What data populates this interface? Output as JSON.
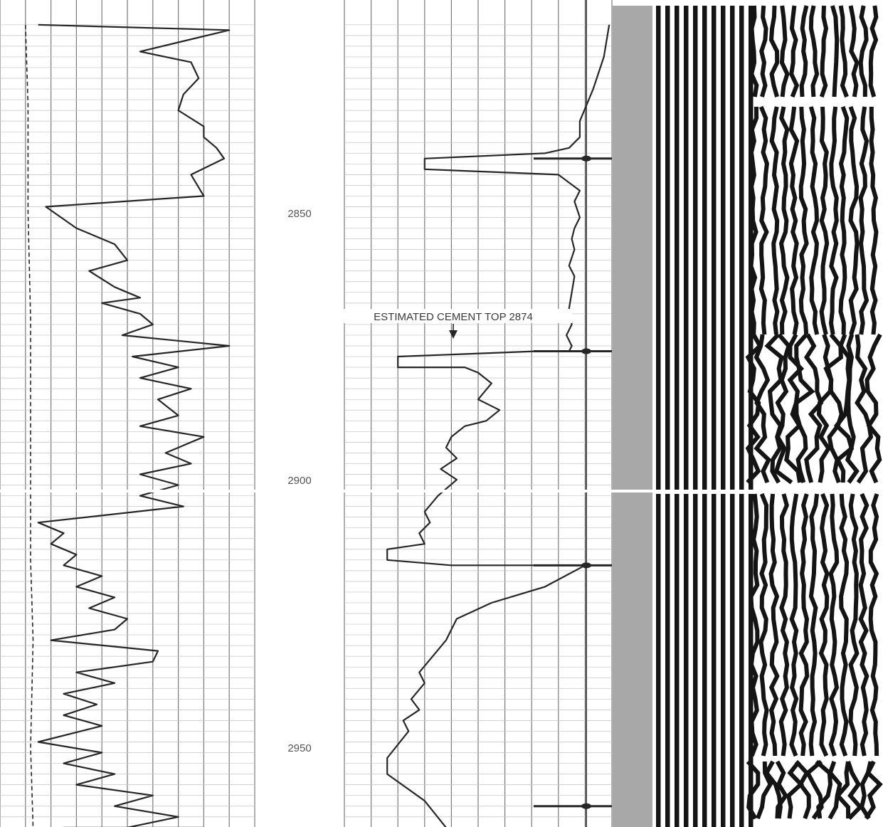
{
  "colors": {
    "paper": "#ffffff",
    "grid": "#7a7a7a",
    "grid_minor": "#c4c4c4",
    "ink": "#262626",
    "vdl_gray": "#a8a8a8",
    "vdl_dark": "#141414"
  },
  "chart_data": [
    {
      "type": "line",
      "track": "left",
      "depth_axis": "vertical",
      "depth_range": [
        2815,
        2965
      ],
      "grid": true,
      "series": [
        {
          "style": "solid",
          "x": [
            0.15,
            0.9,
            0.55,
            0.75,
            0.78,
            0.72,
            0.7,
            0.8,
            0.8,
            0.85,
            0.88,
            0.75,
            0.8,
            0.18,
            0.3,
            0.45,
            0.5,
            0.35,
            0.45,
            0.55,
            0.4,
            0.55,
            0.6,
            0.48,
            0.9,
            0.52,
            0.7,
            0.55,
            0.75,
            0.62,
            0.7,
            0.55,
            0.8,
            0.65,
            0.75,
            0.55,
            0.7,
            0.55,
            0.72,
            0.15,
            0.25,
            0.2,
            0.3,
            0.25,
            0.4,
            0.3,
            0.45,
            0.35,
            0.5,
            0.45,
            0.2,
            0.62,
            0.6,
            0.3,
            0.45,
            0.25,
            0.38,
            0.25,
            0.4,
            0.15,
            0.4,
            0.25,
            0.45,
            0.3,
            0.6,
            0.45,
            0.7,
            0.5,
            0.7,
            0.5,
            0.72,
            0.8,
            0.5,
            0.65,
            0.45,
            0.8,
            0.3,
            0.55,
            0.25
          ],
          "y": [
            2815,
            2816,
            2820,
            2822,
            2825,
            2828,
            2831,
            2834,
            2836,
            2838,
            2840,
            2843,
            2847,
            2849,
            2853,
            2856,
            2859,
            2861,
            2864,
            2866,
            2867,
            2869,
            2871,
            2873,
            2875,
            2877,
            2879,
            2881,
            2883,
            2885,
            2888,
            2890,
            2892,
            2895,
            2897,
            2899,
            2901,
            2903,
            2905,
            2908,
            2910,
            2912,
            2914,
            2916,
            2918,
            2920,
            2922,
            2924,
            2926,
            2928,
            2930,
            2932,
            2934,
            2936,
            2938,
            2940,
            2942,
            2944,
            2946,
            2949,
            2951,
            2953,
            2955,
            2957,
            2959,
            2961,
            2963,
            2965,
            2965,
            2965,
            2965,
            2965,
            2965,
            2965,
            2965,
            2965,
            2965,
            2965,
            2965
          ]
        },
        {
          "style": "dashed",
          "x": [
            0.1,
            0.11,
            0.11,
            0.12,
            0.12,
            0.12,
            0.12,
            0.13,
            0.12,
            0.13
          ],
          "y": [
            2815,
            2830,
            2850,
            2870,
            2885,
            2900,
            2915,
            2930,
            2950,
            2965
          ]
        }
      ]
    },
    {
      "type": "line",
      "track": "middle",
      "depth_axis": "vertical",
      "depth_range": [
        2815,
        2965
      ],
      "grid": true,
      "series": [
        {
          "style": "solid",
          "x": [
            0.99,
            0.97,
            0.93,
            0.88,
            0.88,
            0.84,
            0.75,
            0.3,
            0.3,
            0.8,
            0.88,
            0.86,
            0.88,
            0.86,
            0.85,
            0.86,
            0.84,
            0.86,
            0.85,
            0.84,
            0.85,
            0.83,
            0.85,
            0.84,
            0.72,
            0.2,
            0.2,
            0.45,
            0.5,
            0.55,
            0.5,
            0.58,
            0.53,
            0.45,
            0.4,
            0.38,
            0.42,
            0.36,
            0.42,
            0.35,
            0.3,
            0.32,
            0.28,
            0.3,
            0.16,
            0.16,
            0.4,
            0.7,
            0.9,
            0.75,
            0.55,
            0.42,
            0.38,
            0.33,
            0.28,
            0.3,
            0.25,
            0.28,
            0.22,
            0.24,
            0.16,
            0.16,
            0.3,
            0.38
          ],
          "y": [
            2815,
            2821,
            2827,
            2833,
            2836,
            2838,
            2839,
            2840,
            2842,
            2843,
            2846,
            2848,
            2851,
            2853,
            2855,
            2857,
            2860,
            2862,
            2865,
            2868,
            2871,
            2873,
            2875,
            2876,
            2876,
            2877,
            2879,
            2879,
            2880,
            2882,
            2885,
            2887,
            2889,
            2890,
            2892,
            2894,
            2896,
            2898,
            2900,
            2903,
            2906,
            2908,
            2910,
            2912,
            2913,
            2915,
            2916,
            2916,
            2916,
            2920,
            2923,
            2926,
            2930,
            2933,
            2936,
            2938,
            2941,
            2943,
            2945,
            2947,
            2952,
            2955,
            2960,
            2965
          ]
        }
      ]
    },
    {
      "type": "heatmap",
      "track": "right",
      "depth_axis": "vertical",
      "depth_range": [
        2815,
        2965
      ],
      "grid": false,
      "series": [
        {
          "name": "",
          "values": []
        }
      ]
    }
  ],
  "depth_labels": [
    {
      "text": "2850",
      "depth": 2850
    },
    {
      "text": "2900",
      "depth": 2900
    },
    {
      "text": "2950",
      "depth": 2950
    }
  ],
  "annotation": {
    "text": "ESTIMATED CEMENT TOP 2874",
    "depth": 2874
  },
  "tick_depths": [
    2840,
    2876,
    2916,
    2961
  ]
}
